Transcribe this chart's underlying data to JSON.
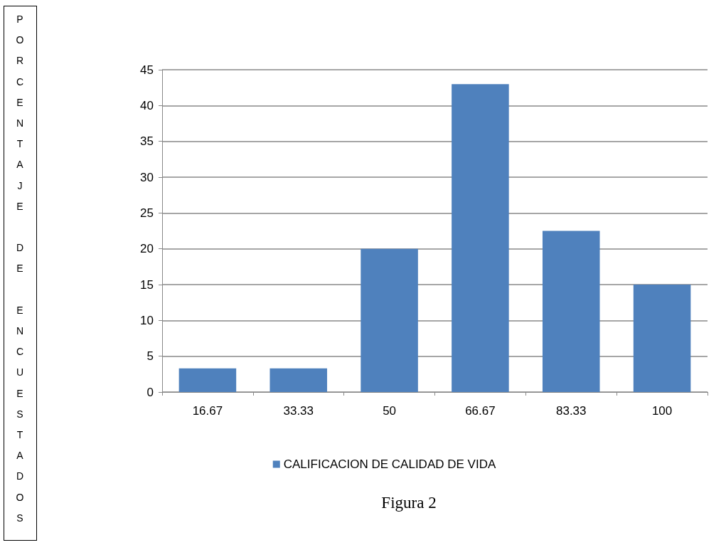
{
  "chart_data": {
    "type": "bar",
    "title": "Figura 2",
    "annotations": [
      "PORCENTAJE DE ENCUESTADOS"
    ],
    "categories": [
      "16.67",
      "33.33",
      "50",
      "66.67",
      "83.33",
      "100"
    ],
    "series": [
      {
        "name": "CALIFICACION DE CALIDAD DE VIDA",
        "color": "#4f81bd",
        "values": [
          3.3,
          3.3,
          20,
          43,
          22.5,
          15
        ]
      }
    ],
    "ylim": [
      0,
      45
    ],
    "yticks": [
      0,
      5,
      10,
      15,
      20,
      25,
      30,
      35,
      40,
      45
    ],
    "grid": "y",
    "legend": "bottom"
  }
}
